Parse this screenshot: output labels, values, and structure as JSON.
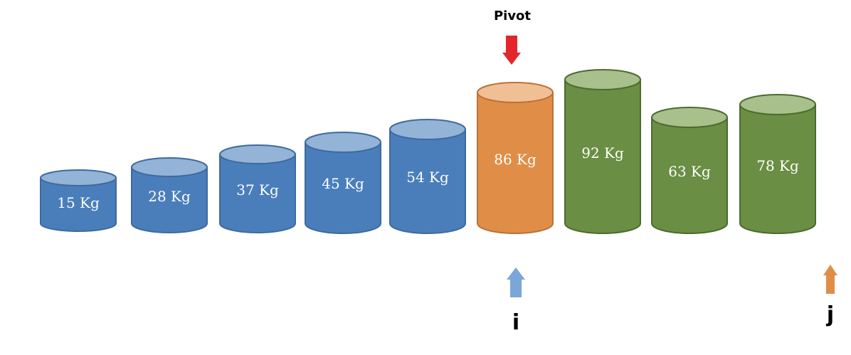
{
  "pivot_label": "Pivot",
  "i_label": "i",
  "j_label": "j",
  "colors": {
    "blue": {
      "body": "#4a7ebb",
      "top": "#93b3d7",
      "stroke": "#3e6a9f"
    },
    "orange": {
      "body": "#e08e47",
      "top": "#f1bf94",
      "stroke": "#b8733a"
    },
    "green": {
      "body": "#6a8e43",
      "top": "#a8c08b",
      "stroke": "#4d6b2f"
    },
    "pivot_arrow": "#e2262b",
    "i_arrow": "#7aa6d8",
    "j_arrow": "#e08e47"
  },
  "cylinders": [
    {
      "label": "15 Kg",
      "weight": 15,
      "color": "blue"
    },
    {
      "label": "28 Kg",
      "weight": 28,
      "color": "blue"
    },
    {
      "label": "37 Kg",
      "weight": 37,
      "color": "blue"
    },
    {
      "label": "45 Kg",
      "weight": 45,
      "color": "blue"
    },
    {
      "label": "54 Kg",
      "weight": 54,
      "color": "blue"
    },
    {
      "label": "86 Kg",
      "weight": 86,
      "color": "orange"
    },
    {
      "label": "92 Kg",
      "weight": 92,
      "color": "green"
    },
    {
      "label": "63 Kg",
      "weight": 63,
      "color": "green"
    },
    {
      "label": "78 Kg",
      "weight": 78,
      "color": "green"
    }
  ]
}
